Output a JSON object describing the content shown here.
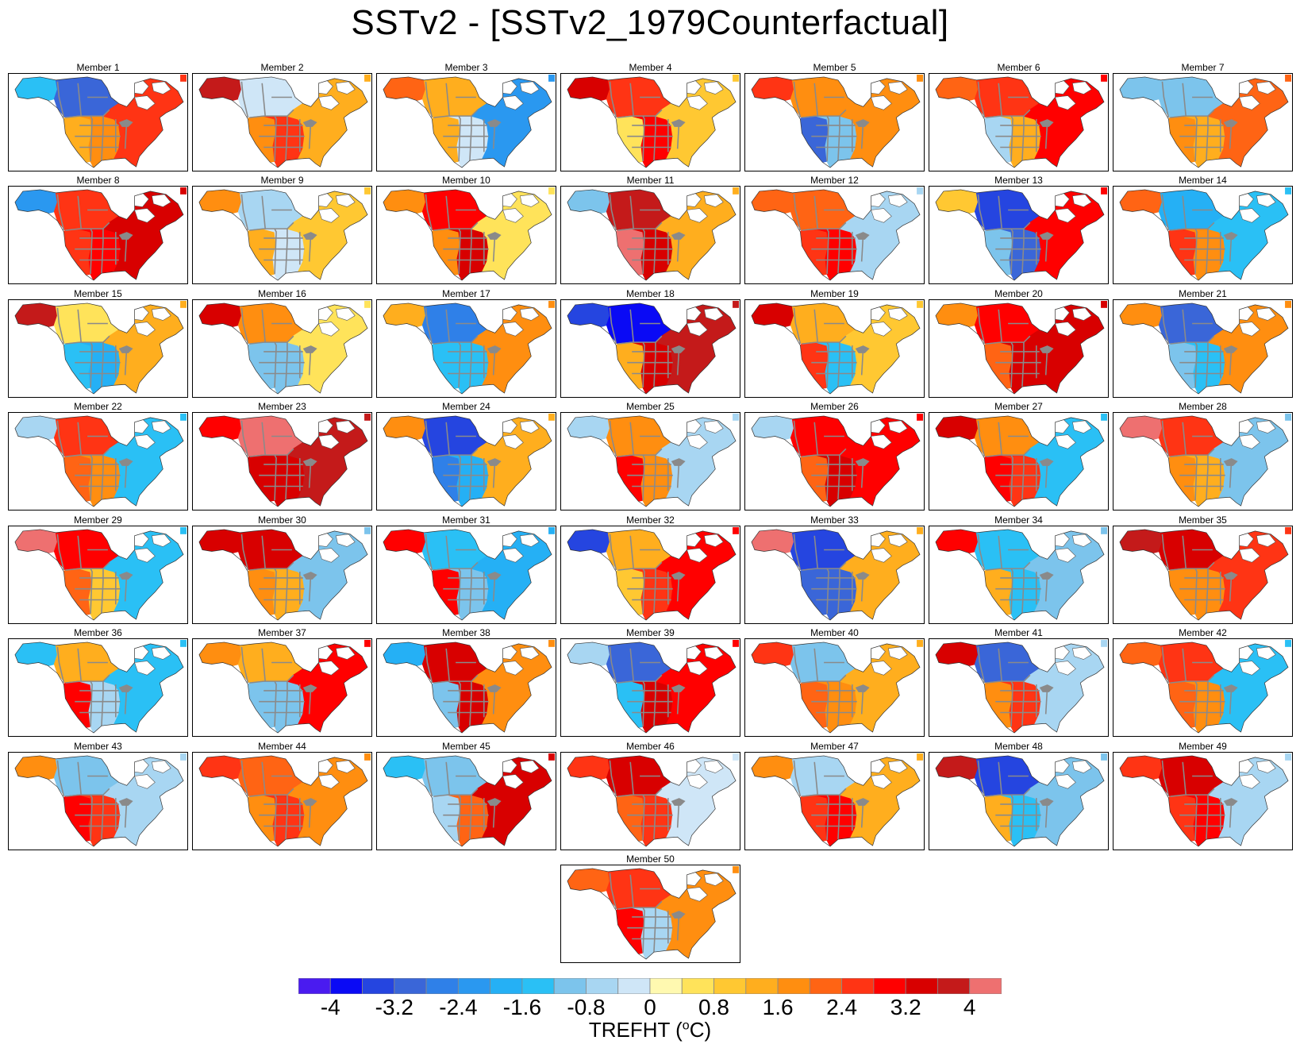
{
  "title": "SSTv2 - [SSTv2_1979Counterfactual]",
  "map_region": "North America",
  "panels": [
    {
      "label": "Member 1",
      "pattern": {
        "north": -1.6,
        "canada": -3.2,
        "west": 1.2,
        "central": 1.6,
        "east": 2.4
      }
    },
    {
      "label": "Member 2",
      "pattern": {
        "north": 3.6,
        "canada": -0.4,
        "west": 1.6,
        "central": 2.4,
        "east": 1.2
      }
    },
    {
      "label": "Member 3",
      "pattern": {
        "north": 2.0,
        "canada": 1.2,
        "west": 1.2,
        "central": -0.4,
        "east": -2.4
      }
    },
    {
      "label": "Member 4",
      "pattern": {
        "north": 3.2,
        "canada": 2.4,
        "west": 0.4,
        "central": 2.8,
        "east": 0.8
      }
    },
    {
      "label": "Member 5",
      "pattern": {
        "north": 2.4,
        "canada": 1.6,
        "west": -3.2,
        "central": -1.2,
        "east": 1.6
      }
    },
    {
      "label": "Member 6",
      "pattern": {
        "north": 2.0,
        "canada": 2.4,
        "west": -0.8,
        "central": 1.2,
        "east": 3.0
      }
    },
    {
      "label": "Member 7",
      "pattern": {
        "north": -1.2,
        "canada": -1.2,
        "west": 1.6,
        "central": 1.2,
        "east": 2.0
      }
    },
    {
      "label": "Member 8",
      "pattern": {
        "north": -2.4,
        "canada": 2.4,
        "west": 2.4,
        "central": 3.0,
        "east": 3.2
      }
    },
    {
      "label": "Member 9",
      "pattern": {
        "north": 1.6,
        "canada": -0.8,
        "west": 1.2,
        "central": -0.4,
        "east": 0.8
      }
    },
    {
      "label": "Member 10",
      "pattern": {
        "north": 1.6,
        "canada": 2.8,
        "west": 1.6,
        "central": 3.2,
        "east": 0.4
      }
    },
    {
      "label": "Member 11",
      "pattern": {
        "north": -1.0,
        "canada": 3.6,
        "west": 4.0,
        "central": 3.2,
        "east": 1.2
      }
    },
    {
      "label": "Member 12",
      "pattern": {
        "north": 2.0,
        "canada": 2.0,
        "west": 2.4,
        "central": 3.0,
        "east": -0.8
      }
    },
    {
      "label": "Member 13",
      "pattern": {
        "north": 1.0,
        "canada": -3.6,
        "west": -1.2,
        "central": -3.2,
        "east": 2.8
      }
    },
    {
      "label": "Member 14",
      "pattern": {
        "north": 2.0,
        "canada": -2.0,
        "west": 2.4,
        "central": 1.6,
        "east": -1.6
      }
    },
    {
      "label": "Member 15",
      "pattern": {
        "north": 3.6,
        "canada": 0.4,
        "west": -1.6,
        "central": -2.0,
        "east": 1.2
      }
    },
    {
      "label": "Member 16",
      "pattern": {
        "north": 3.2,
        "canada": 1.6,
        "west": -1.2,
        "central": -1.2,
        "east": 0.4
      }
    },
    {
      "label": "Member 17",
      "pattern": {
        "north": 1.2,
        "canada": -2.8,
        "west": -1.6,
        "central": -1.6,
        "east": 1.6
      }
    },
    {
      "label": "Member 18",
      "pattern": {
        "north": -3.6,
        "canada": -4.0,
        "west": 1.2,
        "central": 3.2,
        "east": 3.6
      }
    },
    {
      "label": "Member 19",
      "pattern": {
        "north": 3.2,
        "canada": 1.2,
        "west": 2.4,
        "central": -1.6,
        "east": 0.8
      }
    },
    {
      "label": "Member 20",
      "pattern": {
        "north": 1.6,
        "canada": 2.8,
        "west": 2.0,
        "central": 3.2,
        "east": 3.2
      }
    },
    {
      "label": "Member 21",
      "pattern": {
        "north": 1.6,
        "canada": -3.2,
        "west": -1.2,
        "central": -1.6,
        "east": 1.6
      }
    },
    {
      "label": "Member 22",
      "pattern": {
        "north": -0.8,
        "canada": 2.4,
        "west": 2.0,
        "central": 1.6,
        "east": -1.6
      }
    },
    {
      "label": "Member 23",
      "pattern": {
        "north": 2.8,
        "canada": 4.0,
        "west": 3.2,
        "central": 3.2,
        "east": 3.6
      }
    },
    {
      "label": "Member 24",
      "pattern": {
        "north": 1.6,
        "canada": -3.6,
        "west": -2.8,
        "central": -2.0,
        "east": 1.2
      }
    },
    {
      "label": "Member 25",
      "pattern": {
        "north": -0.8,
        "canada": 1.6,
        "west": 2.8,
        "central": 1.6,
        "east": -0.8
      }
    },
    {
      "label": "Member 26",
      "pattern": {
        "north": -0.8,
        "canada": 2.8,
        "west": 2.0,
        "central": 3.2,
        "east": 3.0
      }
    },
    {
      "label": "Member 27",
      "pattern": {
        "north": 3.2,
        "canada": 1.6,
        "west": 2.8,
        "central": 2.4,
        "east": -1.6
      }
    },
    {
      "label": "Member 28",
      "pattern": {
        "north": 4.0,
        "canada": 2.4,
        "west": 1.6,
        "central": 1.2,
        "east": -1.2
      }
    },
    {
      "label": "Member 29",
      "pattern": {
        "north": 4.0,
        "canada": 2.8,
        "west": 2.0,
        "central": 0.8,
        "east": -1.6
      }
    },
    {
      "label": "Member 30",
      "pattern": {
        "north": 3.2,
        "canada": 3.2,
        "west": 1.6,
        "central": 1.2,
        "east": -1.2
      }
    },
    {
      "label": "Member 31",
      "pattern": {
        "north": 2.8,
        "canada": -1.6,
        "west": 2.8,
        "central": -1.2,
        "east": -2.0
      }
    },
    {
      "label": "Member 32",
      "pattern": {
        "north": -3.6,
        "canada": 1.2,
        "west": 0.8,
        "central": 2.4,
        "east": 2.8
      }
    },
    {
      "label": "Member 33",
      "pattern": {
        "north": 4.0,
        "canada": -3.6,
        "west": -3.2,
        "central": -3.2,
        "east": 1.2
      }
    },
    {
      "label": "Member 34",
      "pattern": {
        "north": 2.8,
        "canada": -1.6,
        "west": 1.2,
        "central": -1.6,
        "east": -1.2
      }
    },
    {
      "label": "Member 35",
      "pattern": {
        "north": 3.6,
        "canada": 3.2,
        "west": 1.6,
        "central": 1.6,
        "east": 2.4
      }
    },
    {
      "label": "Member 36",
      "pattern": {
        "north": -1.6,
        "canada": 1.2,
        "west": 2.8,
        "central": -0.8,
        "east": -1.6
      }
    },
    {
      "label": "Member 37",
      "pattern": {
        "north": 1.6,
        "canada": 1.2,
        "west": -1.2,
        "central": -1.2,
        "east": 3.0
      }
    },
    {
      "label": "Member 38",
      "pattern": {
        "north": -2.0,
        "canada": 3.2,
        "west": -1.2,
        "central": 3.2,
        "east": 1.6
      }
    },
    {
      "label": "Member 39",
      "pattern": {
        "north": -0.8,
        "canada": -3.2,
        "west": -1.6,
        "central": 3.2,
        "east": 3.0
      }
    },
    {
      "label": "Member 40",
      "pattern": {
        "north": 2.4,
        "canada": -1.2,
        "west": 2.0,
        "central": 1.6,
        "east": 1.2
      }
    },
    {
      "label": "Member 41",
      "pattern": {
        "north": 3.2,
        "canada": -3.2,
        "west": 1.6,
        "central": 2.4,
        "east": -0.8
      }
    },
    {
      "label": "Member 42",
      "pattern": {
        "north": 2.0,
        "canada": 2.4,
        "west": 2.0,
        "central": 1.6,
        "east": -1.6
      }
    },
    {
      "label": "Member 43",
      "pattern": {
        "north": 1.6,
        "canada": -1.2,
        "west": 2.8,
        "central": 2.4,
        "east": -0.8
      }
    },
    {
      "label": "Member 44",
      "pattern": {
        "north": 2.4,
        "canada": 2.0,
        "west": 1.6,
        "central": 2.4,
        "east": 1.6
      }
    },
    {
      "label": "Member 45",
      "pattern": {
        "north": -1.6,
        "canada": -1.2,
        "west": -0.8,
        "central": 2.0,
        "east": 3.2
      }
    },
    {
      "label": "Member 46",
      "pattern": {
        "north": 2.4,
        "canada": 3.2,
        "west": 2.0,
        "central": 2.4,
        "east": -0.4
      }
    },
    {
      "label": "Member 47",
      "pattern": {
        "north": 1.6,
        "canada": -0.8,
        "west": 2.4,
        "central": 3.0,
        "east": 1.2
      }
    },
    {
      "label": "Member 48",
      "pattern": {
        "north": 3.6,
        "canada": -3.6,
        "west": 1.2,
        "central": -1.6,
        "east": -1.2
      }
    },
    {
      "label": "Member 49",
      "pattern": {
        "north": 2.4,
        "canada": 3.2,
        "west": 2.4,
        "central": 2.8,
        "east": -0.8
      }
    },
    {
      "label": "Member 50",
      "pattern": {
        "north": 2.0,
        "canada": 2.4,
        "west": 2.8,
        "central": -0.8,
        "east": 1.6
      }
    }
  ],
  "colorbar": {
    "colors": [
      "#4a1bf0",
      "#0a0af5",
      "#2545e0",
      "#3a66d8",
      "#2f80e8",
      "#2a98f0",
      "#25b0f5",
      "#2ac0f5",
      "#7cc4ec",
      "#a8d6f2",
      "#cfe6f7",
      "#fff9b0",
      "#ffe35a",
      "#ffc832",
      "#ffae1e",
      "#ff8e10",
      "#ff6414",
      "#ff3414",
      "#ff0000",
      "#d80000",
      "#c41a1a",
      "#ee7070"
    ],
    "tick_values": [
      "-4",
      "-3.2",
      "-2.4",
      "-1.6",
      "-0.8",
      "0",
      "0.8",
      "1.6",
      "2.4",
      "3.2",
      "4"
    ],
    "label": "TREFHT (",
    "label_sup": "o",
    "label_unit": "C)"
  }
}
